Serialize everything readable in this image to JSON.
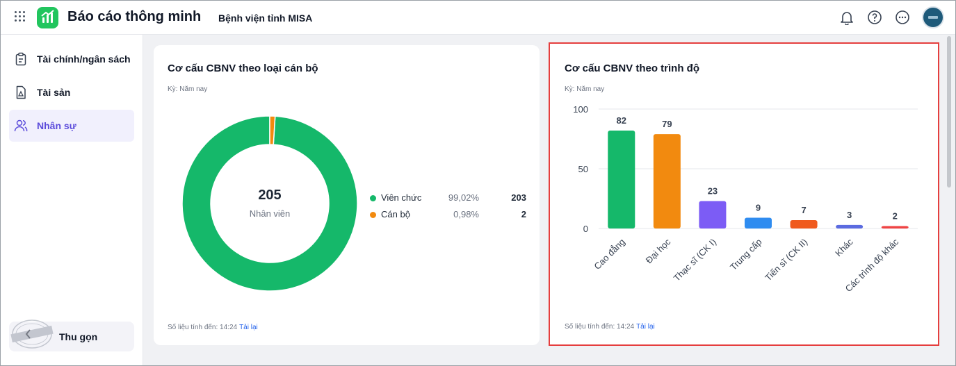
{
  "header": {
    "app_title": "Báo cáo thông minh",
    "org_name": "Bệnh viện tỉnh MISA",
    "icons": [
      "apps-grid-icon",
      "bell-icon",
      "help-icon",
      "more-icon"
    ]
  },
  "sidebar": {
    "items": [
      {
        "label": "Tài chính/ngân sách",
        "icon": "clipboard-icon",
        "active": false
      },
      {
        "label": "Tài sản",
        "icon": "document-icon",
        "active": false
      },
      {
        "label": "Nhân sự",
        "icon": "users-icon",
        "active": true
      }
    ],
    "collapse_label": "Thu gọn",
    "stamp_text": "DỮ LIỆU MẪU"
  },
  "card_type": {
    "title": "Cơ cấu CBNV theo loại cán bộ",
    "period": "Kỳ: Năm nay",
    "center_value": "205",
    "center_label": "Nhân viên",
    "legend": [
      {
        "name": "Viên chức",
        "percent": "99,02%",
        "value": "203",
        "color": "#15b86a"
      },
      {
        "name": "Cán bộ",
        "percent": "0,98%",
        "value": "2",
        "color": "#f28a0f"
      }
    ],
    "footer_text": "Số liệu tính đến: 14:24",
    "reload_label": "Tải lại"
  },
  "card_level": {
    "title": "Cơ cấu CBNV theo trình độ",
    "period": "Kỳ: Năm nay",
    "footer_text": "Số liệu tính đến: 14:24",
    "reload_label": "Tải lại"
  },
  "chart_data": [
    {
      "type": "pie",
      "categories": [
        "Viên chức",
        "Cán bộ"
      ],
      "values": [
        203,
        2
      ],
      "colors": [
        "#15b86a",
        "#f28a0f"
      ]
    },
    {
      "type": "bar",
      "categories": [
        "Cao đẳng",
        "Đại học",
        "Thạc sĩ (CK I)",
        "Trung cấp",
        "Tiến sĩ (CK II)",
        "Khác",
        "Các trình độ khác"
      ],
      "values": [
        82,
        79,
        23,
        9,
        7,
        3,
        2
      ],
      "colors": [
        "#15b86a",
        "#f28a0f",
        "#7c5cf5",
        "#2f8cf0",
        "#f05a1e",
        "#5b6be0",
        "#ef4444"
      ],
      "ylim": [
        0,
        100
      ],
      "yticks": [
        0,
        50,
        100
      ],
      "grid": true
    }
  ]
}
